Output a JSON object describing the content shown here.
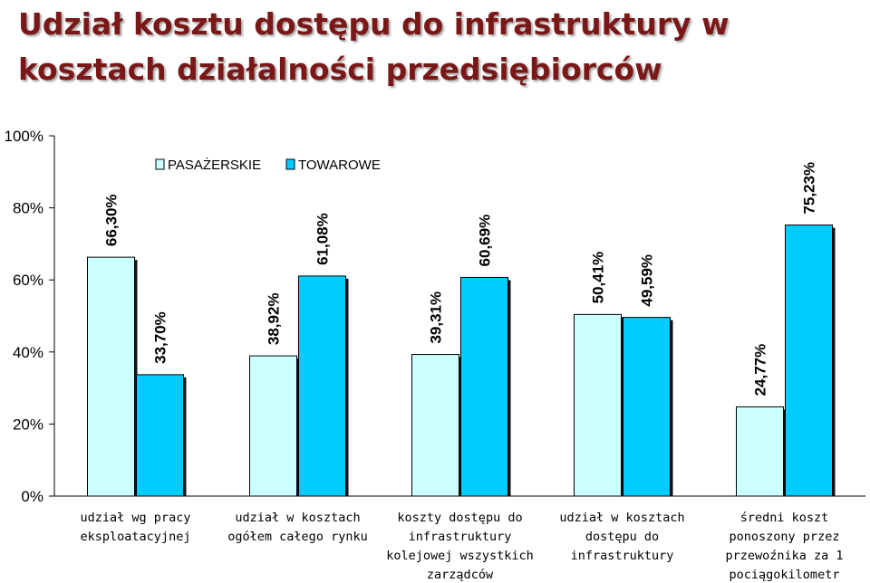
{
  "title": {
    "line1": "Udział kosztu dostępu do infrastruktury w",
    "line2": "kosztach działalności przedsiębiorców"
  },
  "colors": {
    "title": "#7a1818",
    "pasazerskie": "#ccffff",
    "towarowe": "#00ccff"
  },
  "chart_data": {
    "type": "bar",
    "yticks": [
      "0%",
      "20%",
      "40%",
      "60%",
      "80%",
      "100%"
    ],
    "ylim": [
      0,
      100
    ],
    "grid": false,
    "legend": "top-left",
    "categories": [
      [
        "udział wg pracy",
        "eksploatacyjnej"
      ],
      [
        "udział w kosztach",
        "ogółem całego rynku"
      ],
      [
        "koszty dostępu do",
        "infrastruktury",
        "kolejowej wszystkich",
        "zarządców"
      ],
      [
        "udział w kosztach",
        "dostępu do",
        "infrastruktury"
      ],
      [
        "średni koszt",
        "ponoszony przez",
        "przewoźnika za 1",
        "pociągokilometr"
      ]
    ],
    "series": [
      {
        "name": "PASAŻERSKIE",
        "color": "#ccffff",
        "values": [
          66.3,
          38.92,
          39.31,
          50.41,
          24.77
        ],
        "labels": [
          "66,30%",
          "38,92%",
          "39,31%",
          "50,41%",
          "24,77%"
        ]
      },
      {
        "name": "TOWAROWE",
        "color": "#00ccff",
        "values": [
          33.7,
          61.08,
          60.69,
          49.59,
          75.23
        ],
        "labels": [
          "33,70%",
          "61,08%",
          "60,69%",
          "49,59%",
          "75,23%"
        ]
      }
    ]
  }
}
